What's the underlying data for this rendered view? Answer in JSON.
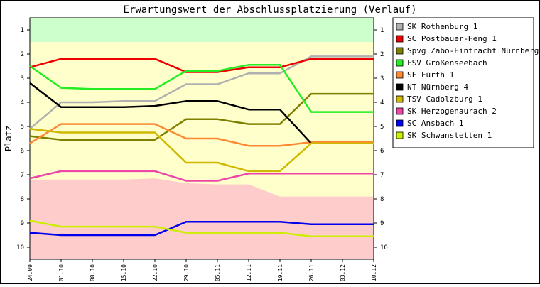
{
  "chart_data": {
    "type": "line",
    "title": "Erwartungswert der Abschlussplatzierung (Verlauf)",
    "xlabel": "",
    "ylabel": "Platz",
    "x": [
      "24.09",
      "01.10",
      "08.10",
      "15.10",
      "22.10",
      "29.10",
      "05.11",
      "12.11",
      "19.11",
      "26.11",
      "03.12",
      "10.12"
    ],
    "ylim": [
      10.5,
      0.5
    ],
    "y_ticks": [
      "1",
      "2",
      "3",
      "4",
      "5",
      "6",
      "7",
      "8",
      "9",
      "10"
    ],
    "y_inverted": true,
    "grid": false,
    "legend_position": "top-right",
    "background_bands": [
      {
        "kind": "promotion",
        "color": "#ccffcc",
        "upper_rank": [
          1.5,
          1.5,
          1.5,
          1.5,
          1.5,
          1.5,
          1.5,
          1.5,
          1.5,
          1.5,
          1.5,
          1.5
        ]
      },
      {
        "kind": "relegation",
        "color": "#ffcccc",
        "lower_rank": [
          7.2,
          7.2,
          7.2,
          7.2,
          7.15,
          7.35,
          7.4,
          7.4,
          7.9,
          7.9,
          7.9,
          7.9
        ]
      },
      {
        "kind": "neutral",
        "color": "#ffffcc"
      }
    ],
    "series": [
      {
        "name": "SK Rothenburg 1",
        "color": "#b0b0b0",
        "values": [
          5.1,
          4.0,
          4.0,
          3.95,
          3.95,
          3.25,
          3.25,
          2.8,
          2.8,
          2.1,
          2.1,
          2.1
        ]
      },
      {
        "name": "SC Postbauer-Heng 1",
        "color": "#ee0000",
        "values": [
          2.55,
          2.2,
          2.2,
          2.2,
          2.2,
          2.75,
          2.75,
          2.55,
          2.55,
          2.2,
          2.2,
          2.2
        ]
      },
      {
        "name": "Spvg Zabo-Eintracht Nürnberg 1",
        "color": "#808000",
        "values": [
          5.4,
          5.55,
          5.55,
          5.55,
          5.55,
          4.7,
          4.7,
          4.9,
          4.9,
          3.65,
          3.65,
          3.65
        ]
      },
      {
        "name": "FSV Großenseebach",
        "color": "#22ee22",
        "values": [
          2.5,
          3.4,
          3.45,
          3.45,
          3.45,
          2.7,
          2.7,
          2.45,
          2.45,
          4.4,
          4.4,
          4.4
        ]
      },
      {
        "name": "SF Fürth 1",
        "color": "#ff8833",
        "values": [
          5.7,
          4.9,
          4.9,
          4.9,
          4.9,
          5.5,
          5.5,
          5.8,
          5.8,
          5.65,
          5.65,
          5.65
        ]
      },
      {
        "name": "NT Nürnberg 4",
        "color": "#000000",
        "values": [
          3.2,
          4.2,
          4.2,
          4.2,
          4.15,
          3.95,
          3.95,
          4.3,
          4.3,
          5.7,
          5.7,
          5.7
        ]
      },
      {
        "name": "TSV Cadolzburg 1",
        "color": "#d0b800",
        "values": [
          5.1,
          5.25,
          5.25,
          5.25,
          5.25,
          6.5,
          6.5,
          6.85,
          6.85,
          5.7,
          5.7,
          5.7
        ]
      },
      {
        "name": "SK Herzogenaurach 2",
        "color": "#ee44aa",
        "values": [
          7.15,
          6.85,
          6.85,
          6.85,
          6.85,
          7.25,
          7.25,
          6.95,
          6.95,
          6.95,
          6.95,
          6.95
        ]
      },
      {
        "name": "SC Ansbach 1",
        "color": "#0000ee",
        "values": [
          9.4,
          9.5,
          9.5,
          9.5,
          9.5,
          8.95,
          8.95,
          8.95,
          8.95,
          9.05,
          9.05,
          9.05
        ]
      },
      {
        "name": "SK Schwanstetten 1",
        "color": "#ccee00",
        "values": [
          8.9,
          9.15,
          9.15,
          9.15,
          9.15,
          9.4,
          9.4,
          9.4,
          9.4,
          9.55,
          9.55,
          9.55
        ]
      }
    ]
  }
}
